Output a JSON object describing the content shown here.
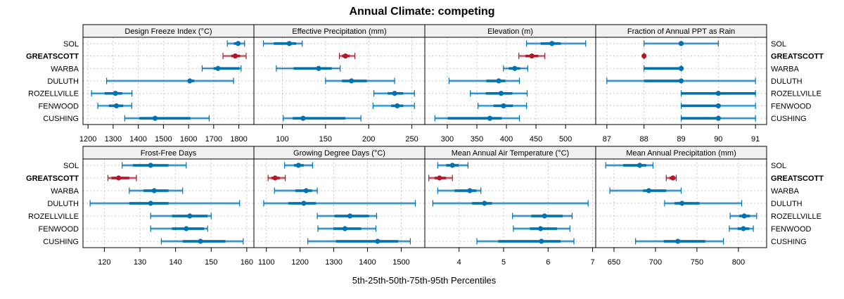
{
  "chart_data": {
    "type": "dotplot-percentiles",
    "title": "Annual Climate: competing",
    "xlabel": "5th-25th-50th-75th-95th Percentiles",
    "sites": [
      "SOL",
      "GREATSCOTT",
      "WARBA",
      "DULUTH",
      "ROZELLVILLE",
      "FENWOOD",
      "CUSHING"
    ],
    "highlight_site": "GREATSCOTT",
    "colors": {
      "default": "#0072b2",
      "highlight": "#b2182b",
      "grid": "#c8c8c8",
      "strip": "#f0f0f0"
    },
    "percentile_keys": [
      "p5",
      "p25",
      "p50",
      "p75",
      "p95"
    ],
    "panels": [
      {
        "title": "Design Freeze Index (°C)",
        "xlim": [
          1180,
          1860
        ],
        "ticks": [
          1200,
          1300,
          1400,
          1500,
          1600,
          1700,
          1800
        ],
        "values": {
          "SOL": [
            1754,
            1780,
            1797,
            1805,
            1823
          ],
          "GREATSCOTT": [
            1737,
            1770,
            1786,
            1805,
            1829
          ],
          "WARBA": [
            1654,
            1700,
            1717,
            1803,
            1809
          ],
          "DULUTH": [
            1274,
            1600,
            1605,
            1623,
            1779
          ],
          "ROZELLVILLE": [
            1214,
            1266,
            1309,
            1336,
            1375
          ],
          "FENWOOD": [
            1239,
            1283,
            1313,
            1340,
            1374
          ],
          "CUSHING": [
            1346,
            1404,
            1467,
            1607,
            1682
          ]
        }
      },
      {
        "title": "Effective Precipitation (mm)",
        "xlim": [
          67,
          265
        ],
        "ticks": [
          100,
          150,
          200,
          250
        ],
        "values": {
          "SOL": [
            78,
            90,
            108,
            116,
            123
          ],
          "GREATSCOTT": [
            166,
            169,
            173,
            178,
            184
          ],
          "WARBA": [
            93,
            113,
            142,
            157,
            167
          ],
          "DULUTH": [
            150,
            169,
            180,
            198,
            230
          ],
          "ROZELLVILLE": [
            206,
            222,
            230,
            240,
            253
          ],
          "FENWOOD": [
            205,
            226,
            233,
            240,
            253
          ],
          "CUSHING": [
            101,
            112,
            124,
            173,
            191
          ]
        }
      },
      {
        "title": "Elevation (m)",
        "xlim": [
          262,
          551
        ],
        "ticks": [
          300,
          350,
          400,
          450,
          500
        ],
        "values": {
          "SOL": [
            434,
            458,
            477,
            492,
            534
          ],
          "GREATSCOTT": [
            421,
            432,
            443,
            454,
            465
          ],
          "WARBA": [
            395,
            404,
            414,
            423,
            436
          ],
          "DULUTH": [
            303,
            366,
            387,
            398,
            422
          ],
          "ROZELLVILLE": [
            339,
            365,
            391,
            410,
            435
          ],
          "FENWOOD": [
            352,
            378,
            395,
            411,
            434
          ],
          "CUSHING": [
            279,
            301,
            372,
            392,
            422
          ]
        }
      },
      {
        "title": "Fraction of Annual PPT as Rain",
        "xlim": [
          86.7,
          91.3
        ],
        "ticks": [
          87,
          88,
          89,
          90,
          91
        ],
        "values": {
          "SOL": [
            88,
            89,
            89,
            89,
            90
          ],
          "GREATSCOTT": [
            88,
            88,
            88,
            88,
            88
          ],
          "WARBA": [
            88,
            88,
            89,
            89,
            89
          ],
          "DULUTH": [
            87,
            88,
            89,
            89,
            91
          ],
          "ROZELLVILLE": [
            89,
            89,
            90,
            91,
            91
          ],
          "FENWOOD": [
            89,
            89,
            90,
            90,
            91
          ],
          "CUSHING": [
            89,
            89,
            90,
            90,
            91
          ]
        }
      },
      {
        "title": "Frost-Free Days",
        "xlim": [
          114,
          162
        ],
        "ticks": [
          120,
          130,
          140,
          150,
          160
        ],
        "values": {
          "SOL": [
            125,
            128,
            133,
            138,
            143
          ],
          "GREATSCOTT": [
            121,
            122,
            124,
            127,
            129
          ],
          "WARBA": [
            127,
            131,
            134,
            138,
            142
          ],
          "DULUTH": [
            116,
            127,
            133,
            138,
            158
          ],
          "ROZELLVILLE": [
            133,
            139,
            144,
            149,
            150
          ],
          "FENWOOD": [
            133,
            139,
            143,
            148,
            149
          ],
          "CUSHING": [
            136,
            142,
            147,
            154,
            159
          ]
        }
      },
      {
        "title": "Growing Degree Days (°C)",
        "xlim": [
          1063,
          1570
        ],
        "ticks": [
          1100,
          1200,
          1300,
          1400,
          1500
        ],
        "values": {
          "SOL": [
            1154,
            1182,
            1195,
            1211,
            1237
          ],
          "GREATSCOTT": [
            1105,
            1115,
            1126,
            1140,
            1156
          ],
          "WARBA": [
            1124,
            1186,
            1218,
            1235,
            1251
          ],
          "DULUTH": [
            1092,
            1165,
            1211,
            1247,
            1542
          ],
          "ROZELLVILLE": [
            1251,
            1302,
            1348,
            1404,
            1427
          ],
          "FENWOOD": [
            1253,
            1299,
            1333,
            1381,
            1425
          ],
          "CUSHING": [
            1223,
            1306,
            1430,
            1491,
            1527
          ]
        }
      },
      {
        "title": "Mean Annual Air Temperature (°C)",
        "xlim": [
          3.23,
          7.07
        ],
        "ticks": [
          4,
          5,
          6,
          7
        ],
        "values": {
          "SOL": [
            3.52,
            3.71,
            3.85,
            3.99,
            4.2
          ],
          "GREATSCOTT": [
            3.32,
            3.45,
            3.56,
            3.71,
            3.85
          ],
          "WARBA": [
            3.52,
            3.9,
            4.24,
            4.39,
            4.49
          ],
          "DULUTH": [
            3.41,
            4.29,
            4.57,
            4.74,
            6.9
          ],
          "ROZELLVILLE": [
            5.2,
            5.62,
            5.92,
            6.33,
            6.54
          ],
          "FENWOOD": [
            5.22,
            5.59,
            5.83,
            6.2,
            6.49
          ],
          "CUSHING": [
            4.4,
            4.88,
            5.85,
            6.28,
            6.58
          ]
        }
      },
      {
        "title": "Mean Annual Precipitation (mm)",
        "xlim": [
          628,
          834
        ],
        "ticks": [
          650,
          700,
          750,
          800
        ],
        "values": {
          "SOL": [
            640,
            661,
            681,
            689,
            697
          ],
          "GREATSCOTT": [
            713,
            717,
            721,
            723,
            725
          ],
          "WARBA": [
            645,
            685,
            692,
            713,
            731
          ],
          "DULUTH": [
            711,
            723,
            732,
            753,
            804
          ],
          "ROZELLVILLE": [
            790,
            801,
            807,
            814,
            822
          ],
          "FENWOOD": [
            789,
            799,
            806,
            813,
            818
          ],
          "CUSHING": [
            676,
            710,
            727,
            760,
            782
          ]
        }
      }
    ]
  }
}
